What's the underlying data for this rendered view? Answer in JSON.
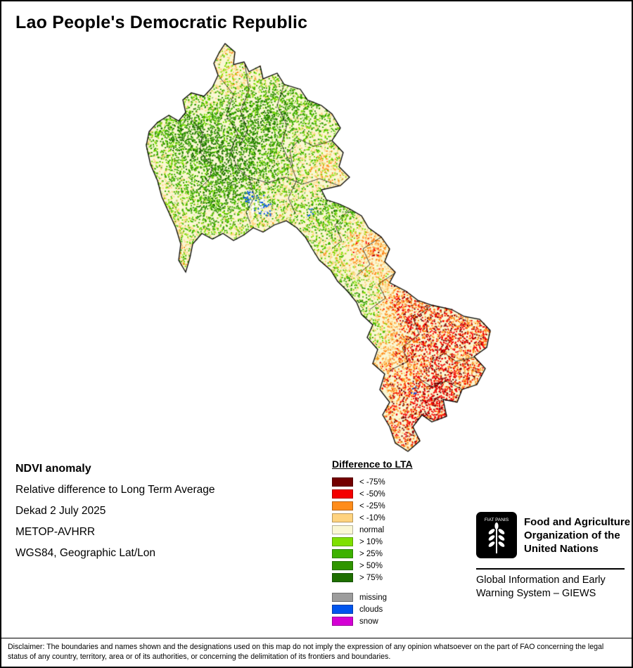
{
  "page": {
    "title": "Lao People's Democratic Republic"
  },
  "info": {
    "heading": "NDVI anomaly",
    "lines": [
      "Relative difference to Long Term Average",
      "Dekad 2 July 2025",
      "METOP-AVHRR",
      "WGS84, Geographic Lat/Lon"
    ]
  },
  "legend": {
    "title": "Difference to LTA",
    "items": [
      {
        "label": "< -75%",
        "color": "#730000"
      },
      {
        "label": "< -50%",
        "color": "#f40000"
      },
      {
        "label": "< -25%",
        "color": "#ff8c1a"
      },
      {
        "label": "< -10%",
        "color": "#ffd37f"
      },
      {
        "label": "normal",
        "color": "#faf7d4"
      },
      {
        "label": "> 10%",
        "color": "#7fe000"
      },
      {
        "label": "> 25%",
        "color": "#3db200"
      },
      {
        "label": "> 50%",
        "color": "#2f9500"
      },
      {
        "label": "> 75%",
        "color": "#1e6f00"
      }
    ],
    "extra_items": [
      {
        "label": "missing",
        "color": "#9c9c9c"
      },
      {
        "label": "clouds",
        "color": "#0055ee"
      },
      {
        "label": "snow",
        "color": "#d400d4"
      }
    ]
  },
  "footer": {
    "fao_motto": "FIAT PANIS",
    "fao_name": [
      "Food and Agriculture",
      "Organization of the",
      "United Nations"
    ],
    "giews": [
      "Global Information and Early",
      "Warning System – GIEWS"
    ]
  },
  "disclaimer": "Disclaimer: The boundaries and names shown and the designations used on this map do not imply the expression of any opinion whatsoever on the part of FAO concerning the legal status of any country, territory, area or of its authorities, or concerning the delimitation of its frontiers and boundaries."
}
